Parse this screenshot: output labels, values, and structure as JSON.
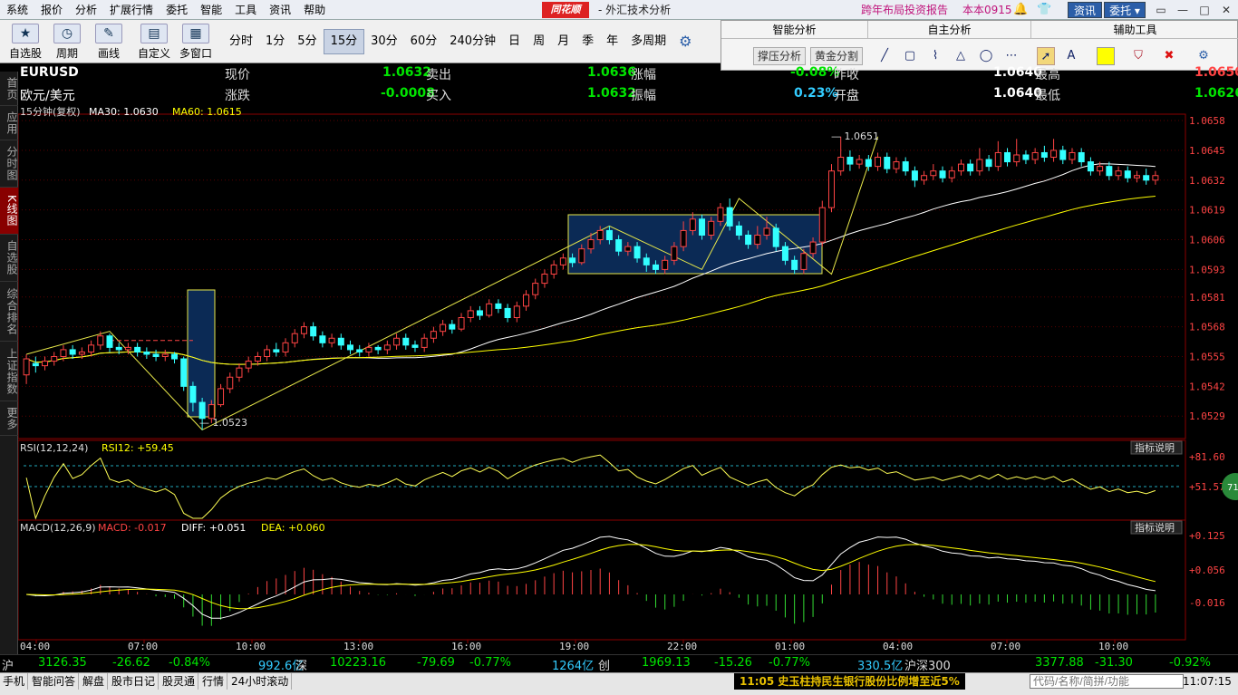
{
  "menubar": {
    "items": [
      "系统",
      "报价",
      "分析",
      "扩展行情",
      "委托",
      "智能",
      "工具",
      "资讯",
      "帮助"
    ],
    "logo": "同花顺",
    "title": "外汇技术分析",
    "ad": "跨年布局投资报告",
    "version": "本本0915",
    "btn_news": "资讯",
    "btn_trade": "委托"
  },
  "toolbar": {
    "tools": [
      "自选股",
      "周期",
      "画线",
      "自定义",
      "多窗口"
    ],
    "periods": [
      "分时",
      "1分",
      "5分",
      "15分",
      "30分",
      "60分",
      "240分钟",
      "日",
      "周",
      "月",
      "季",
      "年",
      "多周期"
    ],
    "active_period": "15分"
  },
  "analysis_panel": {
    "heading_ai": "智能分析",
    "heading_self": "自主分析",
    "heading_aux": "辅助工具",
    "btn_pressure": "撑压分析",
    "btn_golden": "黄金分割"
  },
  "sidebar": {
    "tabs": [
      "首页",
      "应用",
      "分时图",
      "K线图",
      "自选股",
      "综合排名",
      "上证指数",
      "更多"
    ],
    "active": "K线图"
  },
  "quote": {
    "symbol": "EURUSD",
    "name": "欧元/美元",
    "current_label": "现价",
    "current": "1.0632",
    "change_label": "涨跌",
    "change": "-0.0008",
    "sell_label": "卖出",
    "sell": "1.0636",
    "buy_label": "买入",
    "buy": "1.0632",
    "pct_label": "涨幅",
    "pct": "-0.08%",
    "amp_label": "振幅",
    "amp": "0.23%",
    "prev_label": "昨收",
    "prev": "1.0640",
    "open_label": "开盘",
    "open": "1.0640",
    "high_label": "最高",
    "high": "1.0650",
    "low_label": "最低",
    "low": "1.0626"
  },
  "chart": {
    "main_title": "15分钟(复权)",
    "ma30": "MA30: 1.0630",
    "ma60": "MA60: 1.0615",
    "y_ticks": [
      "1.0658",
      "1.0645",
      "1.0632",
      "1.0619",
      "1.0606",
      "1.0593",
      "1.0581",
      "1.0568",
      "1.0555",
      "1.0542",
      "1.0529"
    ],
    "high_note": "1.0651",
    "low_note": "1.0523",
    "rsi_title": "RSI(12,12,24)",
    "rsi_value": "RSI12: +59.45",
    "rsi_ticks": [
      "+81.60",
      "+51.57"
    ],
    "macd_title": "MACD(12,26,9)",
    "macd_value": "MACD: -0.017",
    "diff_value": "DIFF: +0.051",
    "dea_value": "DEA: +0.060",
    "macd_ticks": [
      "+0.125",
      "+0.056",
      "-0.016"
    ],
    "x_ticks": [
      "04:00",
      "07:00",
      "10:00",
      "13:00",
      "16:00",
      "19:00",
      "22:00",
      "01:00",
      "04:00",
      "07:00",
      "10:00"
    ],
    "indicator_help": "指标说明",
    "badge": "71"
  },
  "chart_data": {
    "type": "candlestick",
    "y_range": [
      1.052,
      1.066
    ],
    "candles": [
      [
        1.0547,
        1.0554,
        1.0543,
        1.0556
      ],
      [
        1.0552,
        1.0551,
        1.0548,
        1.0555
      ],
      [
        1.0551,
        1.0553,
        1.0549,
        1.0555
      ],
      [
        1.0553,
        1.0555,
        1.0551,
        1.0557
      ],
      [
        1.0555,
        1.0558,
        1.0553,
        1.056
      ],
      [
        1.0558,
        1.0556,
        1.0554,
        1.056
      ],
      [
        1.0556,
        1.0557,
        1.0554,
        1.0559
      ],
      [
        1.0557,
        1.056,
        1.0555,
        1.0562
      ],
      [
        1.056,
        1.0564,
        1.0558,
        1.0566
      ],
      [
        1.0564,
        1.0559,
        1.0557,
        1.0565
      ],
      [
        1.0559,
        1.0558,
        1.0556,
        1.0561
      ],
      [
        1.0558,
        1.0559,
        1.0556,
        1.0561
      ],
      [
        1.0559,
        1.0557,
        1.0555,
        1.0561
      ],
      [
        1.0557,
        1.0556,
        1.0554,
        1.0559
      ],
      [
        1.0556,
        1.0555,
        1.0553,
        1.0558
      ],
      [
        1.0555,
        1.0556,
        1.0553,
        1.0558
      ],
      [
        1.0556,
        1.0554,
        1.0552,
        1.0557
      ],
      [
        1.0554,
        1.0542,
        1.054,
        1.0555
      ],
      [
        1.0542,
        1.0535,
        1.0531,
        1.0544
      ],
      [
        1.0535,
        1.0528,
        1.0523,
        1.0537
      ],
      [
        1.0528,
        1.0534,
        1.0526,
        1.0536
      ],
      [
        1.0534,
        1.0541,
        1.0533,
        1.0543
      ],
      [
        1.0541,
        1.0546,
        1.0539,
        1.0548
      ],
      [
        1.0546,
        1.055,
        1.0544,
        1.0552
      ],
      [
        1.055,
        1.0553,
        1.0548,
        1.0555
      ],
      [
        1.0553,
        1.0555,
        1.0551,
        1.0557
      ],
      [
        1.0555,
        1.0558,
        1.0553,
        1.056
      ],
      [
        1.0558,
        1.0557,
        1.0555,
        1.0561
      ],
      [
        1.0557,
        1.0561,
        1.0555,
        1.0563
      ],
      [
        1.0561,
        1.0565,
        1.0559,
        1.0567
      ],
      [
        1.0565,
        1.0568,
        1.0563,
        1.057
      ],
      [
        1.0568,
        1.0564,
        1.0562,
        1.057
      ],
      [
        1.0564,
        1.0561,
        1.0559,
        1.0566
      ],
      [
        1.0561,
        1.0563,
        1.0559,
        1.0565
      ],
      [
        1.0563,
        1.056,
        1.0558,
        1.0565
      ],
      [
        1.056,
        1.0558,
        1.0556,
        1.0562
      ],
      [
        1.0558,
        1.0557,
        1.0555,
        1.056
      ],
      [
        1.0557,
        1.0559,
        1.0555,
        1.0561
      ],
      [
        1.0559,
        1.0558,
        1.0556,
        1.056
      ],
      [
        1.0558,
        1.056,
        1.0556,
        1.0562
      ],
      [
        1.056,
        1.0563,
        1.0558,
        1.0565
      ],
      [
        1.0563,
        1.056,
        1.0558,
        1.0565
      ],
      [
        1.056,
        1.0559,
        1.0557,
        1.0562
      ],
      [
        1.0559,
        1.0563,
        1.0557,
        1.0565
      ],
      [
        1.0563,
        1.0566,
        1.0561,
        1.0568
      ],
      [
        1.0566,
        1.0569,
        1.0564,
        1.0571
      ],
      [
        1.0569,
        1.0567,
        1.0565,
        1.0571
      ],
      [
        1.0567,
        1.0572,
        1.0566,
        1.0574
      ],
      [
        1.0572,
        1.0575,
        1.057,
        1.0577
      ],
      [
        1.0575,
        1.0573,
        1.0571,
        1.0577
      ],
      [
        1.0573,
        1.0578,
        1.0572,
        1.058
      ],
      [
        1.0578,
        1.0576,
        1.0574,
        1.058
      ],
      [
        1.0576,
        1.0572,
        1.057,
        1.0578
      ],
      [
        1.0572,
        1.0577,
        1.057,
        1.0579
      ],
      [
        1.0577,
        1.0582,
        1.0575,
        1.0584
      ],
      [
        1.0582,
        1.0587,
        1.058,
        1.0589
      ],
      [
        1.0587,
        1.0591,
        1.0585,
        1.0593
      ],
      [
        1.0591,
        1.0595,
        1.0589,
        1.0597
      ],
      [
        1.0595,
        1.0598,
        1.0593,
        1.06
      ],
      [
        1.0598,
        1.0596,
        1.0594,
        1.06
      ],
      [
        1.0596,
        1.0602,
        1.0595,
        1.0604
      ],
      [
        1.0602,
        1.0606,
        1.06,
        1.0609
      ],
      [
        1.0606,
        1.061,
        1.0604,
        1.0612
      ],
      [
        1.061,
        1.0606,
        1.0604,
        1.0612
      ],
      [
        1.0606,
        1.0601,
        1.0599,
        1.0608
      ],
      [
        1.0601,
        1.0603,
        1.0599,
        1.0605
      ],
      [
        1.0603,
        1.0598,
        1.0596,
        1.0605
      ],
      [
        1.0598,
        1.0595,
        1.0592,
        1.06
      ],
      [
        1.0595,
        1.0593,
        1.0591,
        1.0597
      ],
      [
        1.0593,
        1.0597,
        1.0591,
        1.0599
      ],
      [
        1.0597,
        1.0603,
        1.0595,
        1.0605
      ],
      [
        1.0603,
        1.061,
        1.0601,
        1.0614
      ],
      [
        1.061,
        1.0615,
        1.0608,
        1.0618
      ],
      [
        1.0615,
        1.0608,
        1.0606,
        1.0617
      ],
      [
        1.0608,
        1.0614,
        1.0606,
        1.0616
      ],
      [
        1.0614,
        1.062,
        1.0612,
        1.0622
      ],
      [
        1.062,
        1.0612,
        1.061,
        1.0624
      ],
      [
        1.0612,
        1.0608,
        1.0606,
        1.0614
      ],
      [
        1.0608,
        1.0604,
        1.0602,
        1.061
      ],
      [
        1.0604,
        1.0608,
        1.0602,
        1.0612
      ],
      [
        1.0608,
        1.0611,
        1.0606,
        1.0616
      ],
      [
        1.0611,
        1.0603,
        1.0601,
        1.0613
      ],
      [
        1.0603,
        1.0597,
        1.0595,
        1.0605
      ],
      [
        1.0597,
        1.0593,
        1.0591,
        1.0599
      ],
      [
        1.0593,
        1.06,
        1.0591,
        1.0602
      ],
      [
        1.06,
        1.0605,
        1.0598,
        1.0607
      ],
      [
        1.0605,
        1.062,
        1.0603,
        1.0623
      ],
      [
        1.062,
        1.0636,
        1.0618,
        1.0639
      ],
      [
        1.0636,
        1.0642,
        1.0634,
        1.0651
      ],
      [
        1.0642,
        1.0639,
        1.0636,
        1.0645
      ],
      [
        1.0639,
        1.0641,
        1.0637,
        1.0643
      ],
      [
        1.0641,
        1.0638,
        1.0636,
        1.0643
      ],
      [
        1.0638,
        1.0642,
        1.0636,
        1.0644
      ],
      [
        1.0642,
        1.0637,
        1.0635,
        1.0644
      ],
      [
        1.0637,
        1.064,
        1.0635,
        1.0642
      ],
      [
        1.064,
        1.0636,
        1.0634,
        1.0642
      ],
      [
        1.0636,
        1.0632,
        1.0629,
        1.0638
      ],
      [
        1.0632,
        1.0634,
        1.063,
        1.0636
      ],
      [
        1.0634,
        1.0636,
        1.0632,
        1.0639
      ],
      [
        1.0636,
        1.0633,
        1.0631,
        1.0638
      ],
      [
        1.0633,
        1.0636,
        1.0631,
        1.0638
      ],
      [
        1.0636,
        1.0639,
        1.0634,
        1.0641
      ],
      [
        1.0639,
        1.0636,
        1.0634,
        1.0641
      ],
      [
        1.0636,
        1.0641,
        1.0634,
        1.0646
      ],
      [
        1.0641,
        1.0638,
        1.0636,
        1.0643
      ],
      [
        1.0638,
        1.0644,
        1.0636,
        1.0649
      ],
      [
        1.0644,
        1.064,
        1.0638,
        1.0646
      ],
      [
        1.064,
        1.0643,
        1.0638,
        1.065
      ],
      [
        1.0643,
        1.0641,
        1.0639,
        1.0645
      ],
      [
        1.0641,
        1.0644,
        1.0639,
        1.0646
      ],
      [
        1.0644,
        1.0642,
        1.064,
        1.0647
      ],
      [
        1.0642,
        1.0645,
        1.064,
        1.065
      ],
      [
        1.0645,
        1.0641,
        1.0639,
        1.0647
      ],
      [
        1.0641,
        1.0644,
        1.0639,
        1.0646
      ],
      [
        1.0644,
        1.064,
        1.0638,
        1.0646
      ],
      [
        1.064,
        1.0636,
        1.0634,
        1.0642
      ],
      [
        1.0636,
        1.0638,
        1.0634,
        1.064
      ],
      [
        1.0638,
        1.0634,
        1.0632,
        1.064
      ],
      [
        1.0634,
        1.0636,
        1.0632,
        1.0638
      ],
      [
        1.0636,
        1.0633,
        1.0631,
        1.0638
      ],
      [
        1.0633,
        1.0634,
        1.0631,
        1.0636
      ],
      [
        1.0634,
        1.0632,
        1.063,
        1.0637
      ],
      [
        1.0632,
        1.0634,
        1.063,
        1.0636
      ]
    ]
  },
  "status": {
    "sh_label": "沪",
    "sh_index": "3126.35",
    "sh_change": "-26.62",
    "sh_pct": "-0.84%",
    "sh_amount": "992.6亿",
    "sz_label": "深",
    "sz_index": "10223.16",
    "sz_change": "-79.69",
    "sz_pct": "-0.77%",
    "sz_amount": "1264亿",
    "cy_label": "创",
    "cy_index": "1969.13",
    "cy_change": "-15.26",
    "cy_pct": "-0.77%",
    "cy_amount": "330.5亿",
    "hs_label": "沪深300",
    "hs_index": "3377.88",
    "hs_change": "-31.30",
    "hs_pct": "-0.92%"
  },
  "bottom": {
    "tabs": [
      "手机",
      "智能问答",
      "解盘",
      "股市日记",
      "股灵通",
      "行情",
      "24小时滚动"
    ],
    "news": "11:05 史玉柱持民生银行股份比例增至近5%",
    "search_placeholder": "代码/名称/简拼/功能",
    "clock": "11:07:15"
  }
}
